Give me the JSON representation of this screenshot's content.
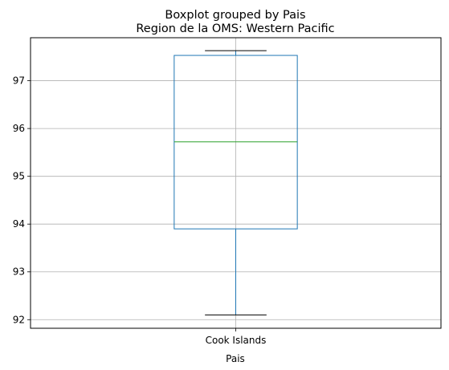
{
  "chart_data": {
    "type": "boxplot",
    "suptitle": "Boxplot grouped by Pais",
    "title": "Region de la OMS: Western Pacific",
    "xlabel": "Pais",
    "ylabel": "",
    "categories": [
      "Cook Islands"
    ],
    "boxes": [
      {
        "category": "Cook Islands",
        "whisker_low": 92.1,
        "q1": 93.9,
        "median": 95.72,
        "q3": 97.53,
        "whisker_high": 97.63
      }
    ],
    "ylim": [
      91.82,
      97.9
    ],
    "yticks": [
      92,
      93,
      94,
      95,
      96,
      97
    ],
    "grid": true,
    "colors": {
      "box": "#1f77b4",
      "median": "#2ca02c",
      "whisker": "#1f77b4",
      "cap": "#000000",
      "grid": "#b0b0b0"
    }
  }
}
